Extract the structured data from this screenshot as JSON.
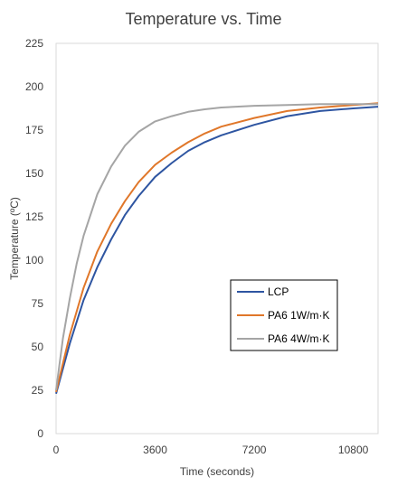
{
  "chart_data": {
    "type": "line",
    "title": "Temperature vs. Time",
    "xlabel": "Time (seconds)",
    "ylabel": "Temperature (ºC)",
    "xlim": [
      0,
      11700
    ],
    "ylim": [
      0,
      225
    ],
    "xticks": [
      0,
      3600,
      7200,
      10800
    ],
    "yticks": [
      0,
      25,
      50,
      75,
      100,
      125,
      150,
      175,
      200,
      225
    ],
    "grid": false,
    "legend_position": "right-center",
    "series": [
      {
        "name": "LCP",
        "color": "#2E55A1",
        "points": [
          [
            0,
            23
          ],
          [
            500,
            52
          ],
          [
            1000,
            77
          ],
          [
            1500,
            96
          ],
          [
            2000,
            112
          ],
          [
            2500,
            126
          ],
          [
            3000,
            137
          ],
          [
            3600,
            148
          ],
          [
            4200,
            156
          ],
          [
            4800,
            163
          ],
          [
            5400,
            168
          ],
          [
            6000,
            172
          ],
          [
            7200,
            178
          ],
          [
            8400,
            183
          ],
          [
            9600,
            186
          ],
          [
            10800,
            187.5
          ],
          [
            11700,
            188.5
          ]
        ]
      },
      {
        "name": "PA6 1W/m·K",
        "color": "#E0772A",
        "points": [
          [
            0,
            24
          ],
          [
            500,
            57
          ],
          [
            1000,
            84
          ],
          [
            1500,
            105
          ],
          [
            2000,
            121
          ],
          [
            2500,
            134
          ],
          [
            3000,
            145
          ],
          [
            3600,
            155
          ],
          [
            4200,
            162
          ],
          [
            4800,
            168
          ],
          [
            5400,
            173
          ],
          [
            6000,
            177
          ],
          [
            7200,
            182
          ],
          [
            8400,
            186
          ],
          [
            9600,
            188
          ],
          [
            10800,
            189.5
          ],
          [
            11700,
            190.5
          ]
        ]
      },
      {
        "name": "PA6 4W/m·K",
        "color": "#A5A5A5",
        "points": [
          [
            0,
            25
          ],
          [
            250,
            55
          ],
          [
            500,
            78
          ],
          [
            750,
            98
          ],
          [
            1000,
            114
          ],
          [
            1500,
            138
          ],
          [
            2000,
            154
          ],
          [
            2500,
            166
          ],
          [
            3000,
            174
          ],
          [
            3600,
            180
          ],
          [
            4200,
            183
          ],
          [
            4800,
            185.5
          ],
          [
            5400,
            187
          ],
          [
            6000,
            188
          ],
          [
            7200,
            189
          ],
          [
            8400,
            189.5
          ],
          [
            9600,
            190
          ],
          [
            10800,
            190
          ],
          [
            11700,
            190
          ]
        ]
      }
    ]
  }
}
